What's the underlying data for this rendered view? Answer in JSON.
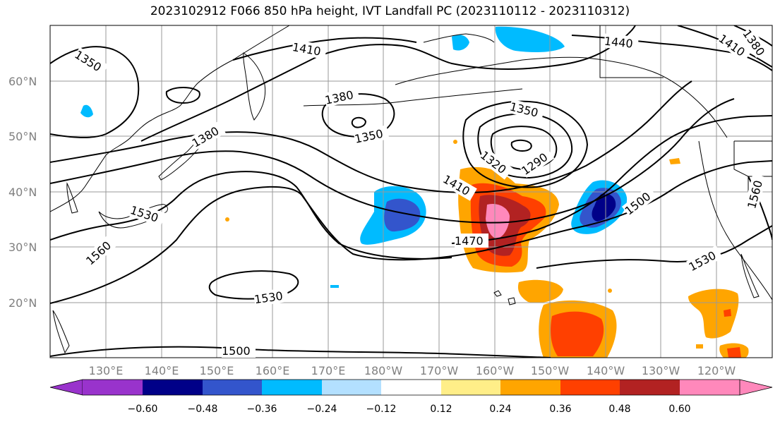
{
  "title": "2023102912 F066 850 hPa height, IVT Landfall PC (2023110112 - 2023110312)",
  "lat_ticks": [
    "20°N",
    "30°N",
    "40°N",
    "50°N",
    "60°N"
  ],
  "lon_ticks": [
    "130°E",
    "140°E",
    "150°E",
    "160°E",
    "170°E",
    "180°W",
    "170°W",
    "160°W",
    "150°W",
    "140°W",
    "130°W",
    "120°W"
  ],
  "contour_labels": [
    "1350",
    "1410",
    "1440",
    "1410",
    "1380",
    "1380",
    "1350",
    "1350",
    "1320",
    "1290",
    "1410",
    "1530",
    "1560",
    "1470",
    "1500",
    "1530",
    "1530",
    "1500",
    "1560",
    "1380"
  ],
  "colorbar": {
    "labels": [
      "−0.60",
      "−0.48",
      "−0.36",
      "−0.24",
      "−0.12",
      "0.12",
      "0.24",
      "0.36",
      "0.48",
      "0.60"
    ],
    "colors": [
      "#9933cc",
      "#000088",
      "#3355cc",
      "#00bbff",
      "#b3e0ff",
      "#ffffff",
      "#ffee88",
      "#ffa500",
      "#ff4000",
      "#b22222",
      "#ff88bb"
    ]
  }
}
